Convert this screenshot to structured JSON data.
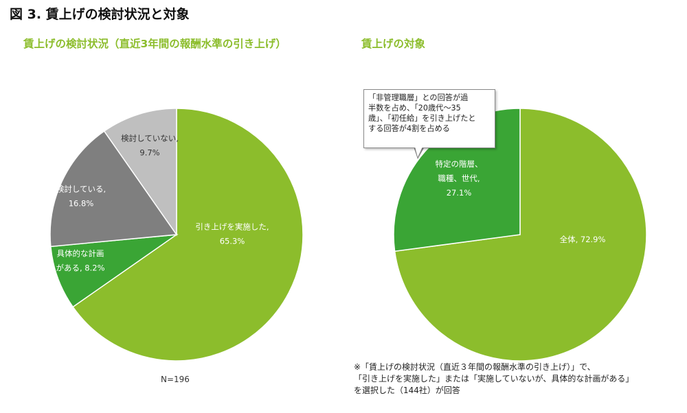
{
  "figure_title": "図 3. 賃上げの検討状況と対象",
  "note_n": "N=196",
  "footnote": "※「賃上げの検討状況（直近３年間の報酬水準の引き上げ）」で、\n「引き上げを実施した」または「実施していないが、具体的な計画がある」\nを選択した（144社）が回答",
  "callout": "「非管理職層」との回答が過\n半数を占め、「20歳代～35\n歳」、「初任給」を引き上げたと\nする回答が4割を占める",
  "chart_data": [
    {
      "type": "pie",
      "title": "賃上げの検討状況（直近3年間の報酬水準の引き上げ）",
      "slices": [
        {
          "name": "引き上げを実施した",
          "value": 65.3,
          "label": [
            "引き上げを実施した,",
            "65.3%"
          ],
          "color": "#8cbd2c"
        },
        {
          "name": "具体的な計画がある",
          "value": 8.2,
          "label": [
            "具体的な計画",
            "がある, 8.2%"
          ],
          "color": "#3aa535"
        },
        {
          "name": "検討している",
          "value": 16.8,
          "label": [
            "検討している,",
            "16.8%"
          ],
          "color": "#7f7f7f"
        },
        {
          "name": "検討していない",
          "value": 9.7,
          "label": [
            "検討していない,",
            "9.7%"
          ],
          "color": "#bfbfbf"
        }
      ]
    },
    {
      "type": "pie",
      "title": "賃上げの対象",
      "slices": [
        {
          "name": "全体",
          "value": 72.9,
          "label": [
            "全体, 72.9%"
          ],
          "color": "#8cbd2c"
        },
        {
          "name": "特定の階層、職種、世代",
          "value": 27.1,
          "label": [
            "特定の階層、",
            "職種、世代,",
            "27.1%"
          ],
          "color": "#3aa535"
        }
      ]
    }
  ]
}
